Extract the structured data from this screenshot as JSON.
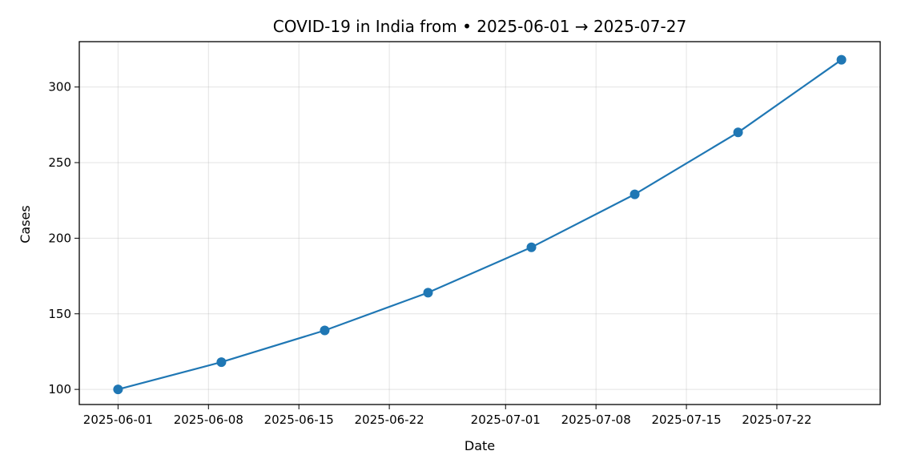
{
  "chart_data": {
    "type": "line",
    "title": "COVID-19 in India from • 2025-06-01 → 2025-07-27",
    "xlabel": "Date",
    "ylabel": "Cases",
    "x_ticks": [
      "2025-06-01",
      "2025-06-08",
      "2025-06-15",
      "2025-06-22",
      "2025-07-01",
      "2025-07-08",
      "2025-07-15",
      "2025-07-22"
    ],
    "y_ticks": [
      100,
      150,
      200,
      250,
      300
    ],
    "xlim": [
      "2025-05-29",
      "2025-07-30"
    ],
    "ylim": [
      90,
      330
    ],
    "grid": true,
    "color": "#1f77b4",
    "series": [
      {
        "x": [
          "2025-06-01",
          "2025-06-09",
          "2025-06-17",
          "2025-06-25",
          "2025-07-03",
          "2025-07-11",
          "2025-07-19",
          "2025-07-27"
        ],
        "values": [
          100,
          118,
          139,
          164,
          194,
          229,
          270,
          318
        ]
      }
    ]
  }
}
